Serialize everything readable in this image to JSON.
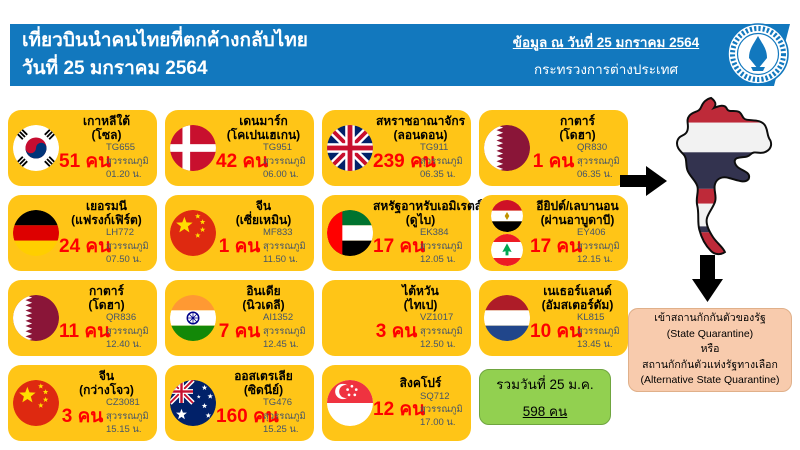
{
  "header": {
    "title_line1": "เที่ยวบินนำคนไทยที่ตกค้างกลับไทย",
    "title_line2": "วันที่ 25 มกราคม 2564",
    "info_date": "ข้อมูล ณ วันที่ 25 มกราคม 2564",
    "ministry": "กระทรวงการต่างประเทศ"
  },
  "cards": [
    {
      "country": "เกาหลีใต้",
      "city": "(โซล)",
      "flags": [
        "south-korea"
      ],
      "flight": "TG655",
      "count": "51 คน",
      "airport": "สุวรรณภูมิ",
      "time": "01.20 น."
    },
    {
      "country": "เดนมาร์ก",
      "city": "(โคเปนเฮเกน)",
      "flags": [
        "denmark"
      ],
      "flight": "TG951",
      "count": "42 คน",
      "airport": "สุวรรณภูมิ",
      "time": "06.00 น."
    },
    {
      "country": "สหราชอาณาจักร",
      "city": "(ลอนดอน)",
      "flags": [
        "uk"
      ],
      "flight": "TG911",
      "count": "239 คน",
      "airport": "สุวรรณภูมิ",
      "time": "06.35 น."
    },
    {
      "country": "กาตาร์",
      "city": "(โดฮา)",
      "flags": [
        "qatar"
      ],
      "flight": "QR830",
      "count": "1 คน",
      "airport": "สุวรรณภูมิ",
      "time": "06.35 น."
    },
    {
      "country": "เยอรมนี",
      "city": "(แฟรงก์เฟิร์ต)",
      "flags": [
        "germany"
      ],
      "flight": "LH772",
      "count": "24 คน",
      "airport": "สุวรรณภูมิ",
      "time": "07.50 น."
    },
    {
      "country": "จีน",
      "city": "(เซี่ยเหมิน)",
      "flags": [
        "china"
      ],
      "flight": "MF833",
      "count": "1 คน",
      "airport": "สุวรรณภูมิ",
      "time": "11.50 น."
    },
    {
      "country": "สหรัฐอาหรับเอมิเรตส์",
      "city": "(ดูไบ)",
      "flags": [
        "uae"
      ],
      "flight": "EK384",
      "count": "17 คน",
      "airport": "สุวรรณภูมิ",
      "time": "12.05 น."
    },
    {
      "country": "อียิปต์/เลบานอน",
      "city": "(ผ่านอาบูดาบี)",
      "flags": [
        "egypt",
        "lebanon"
      ],
      "flight": "EY406",
      "count": "17 คน",
      "airport": "สุวรรณภูมิ",
      "time": "12.15 น."
    },
    {
      "country": "กาตาร์",
      "city": "(โดฮา)",
      "flags": [
        "qatar"
      ],
      "flight": "QR836",
      "count": "11 คน",
      "airport": "สุวรรณภูมิ",
      "time": "12.40 น."
    },
    {
      "country": "อินเดีย",
      "city": "(นิวเดลี)",
      "flags": [
        "india"
      ],
      "flight": "AI1352",
      "count": "7 คน",
      "airport": "สุวรรณภูมิ",
      "time": "12.45 น."
    },
    {
      "country": "ไต้หวัน",
      "city": "(ไทเป)",
      "flags": [],
      "flight": "VZ1017",
      "count": "3 คน",
      "airport": "สุวรรณภูมิ",
      "time": "12.50 น."
    },
    {
      "country": "เนเธอร์แลนด์",
      "city": "(อัมสเตอร์ดัม)",
      "flags": [
        "netherlands"
      ],
      "flight": "KL815",
      "count": "10 คน",
      "airport": "สุวรรณภูมิ",
      "time": "13.45 น."
    },
    {
      "country": "จีน",
      "city": "(กว่างโจว)",
      "flags": [
        "china"
      ],
      "flight": "CZ3081",
      "count": "3 คน",
      "airport": "สุวรรณภูมิ",
      "time": "15.15 น."
    },
    {
      "country": "ออสเตรเลีย",
      "city": "(ซิดนีย์)",
      "flags": [
        "australia"
      ],
      "flight": "TG476",
      "count": "160 คน",
      "airport": "สุวรรณภูมิ",
      "time": "15.25 น."
    },
    {
      "country": "สิงคโปร์",
      "city": "",
      "flags": [
        "singapore"
      ],
      "flight": "SQ712",
      "count": "12 คน",
      "airport": "สุวรรณภูมิ",
      "time": "17.00 น."
    }
  ],
  "total": {
    "line1": "รวมวันที่ 25 ม.ค.",
    "line2": "598 คน"
  },
  "quarantine": {
    "lines": [
      "เข้าสถานกักกันตัวของรัฐ",
      "(State Quarantine)",
      "หรือ",
      "สถานกักกันตัวแห่งรัฐทางเลือก",
      "(Alternative State Quarantine)"
    ]
  },
  "colors": {
    "header_blue": "#1278BE",
    "card_yellow": "#FFC517",
    "count_red": "#FE0000",
    "detail_slate": "#44546A",
    "total_green": "#92D050",
    "quarantine_peach": "#F8CBAD"
  },
  "icons": {
    "emblem": "ministry-of-foreign-affairs-seal",
    "map": "thailand-map-flag-colors",
    "arrows": [
      "right-arrow",
      "down-arrow"
    ]
  }
}
